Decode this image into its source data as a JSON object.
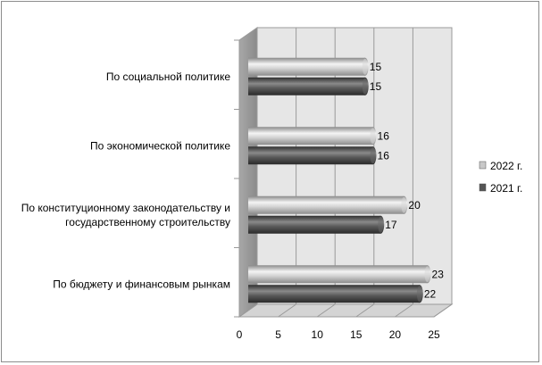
{
  "chart_data": {
    "type": "bar",
    "orientation": "horizontal",
    "style": "3d-cylinder",
    "categories": [
      "По социальной политике",
      "По экономической политике",
      "По конституционному законодательству и государственному строительству",
      "По бюджету и финансовым рынкам"
    ],
    "category_lines": [
      [
        "По социальной политике"
      ],
      [
        "По экономической политике"
      ],
      [
        "По конституционному законодательству и",
        "государственному строительству"
      ],
      [
        "По бюджету и финансовым рынкам"
      ]
    ],
    "series": [
      {
        "name": "2022 г.",
        "values": [
          15,
          16,
          20,
          23
        ],
        "color": "#c8c8c8"
      },
      {
        "name": "2021 г.",
        "values": [
          15,
          16,
          17,
          22
        ],
        "color": "#555555"
      }
    ],
    "xlim": [
      0,
      25
    ],
    "x_ticks": [
      "0",
      "5",
      "10",
      "15",
      "20",
      "25"
    ],
    "grid": true,
    "legend_position": "right"
  }
}
